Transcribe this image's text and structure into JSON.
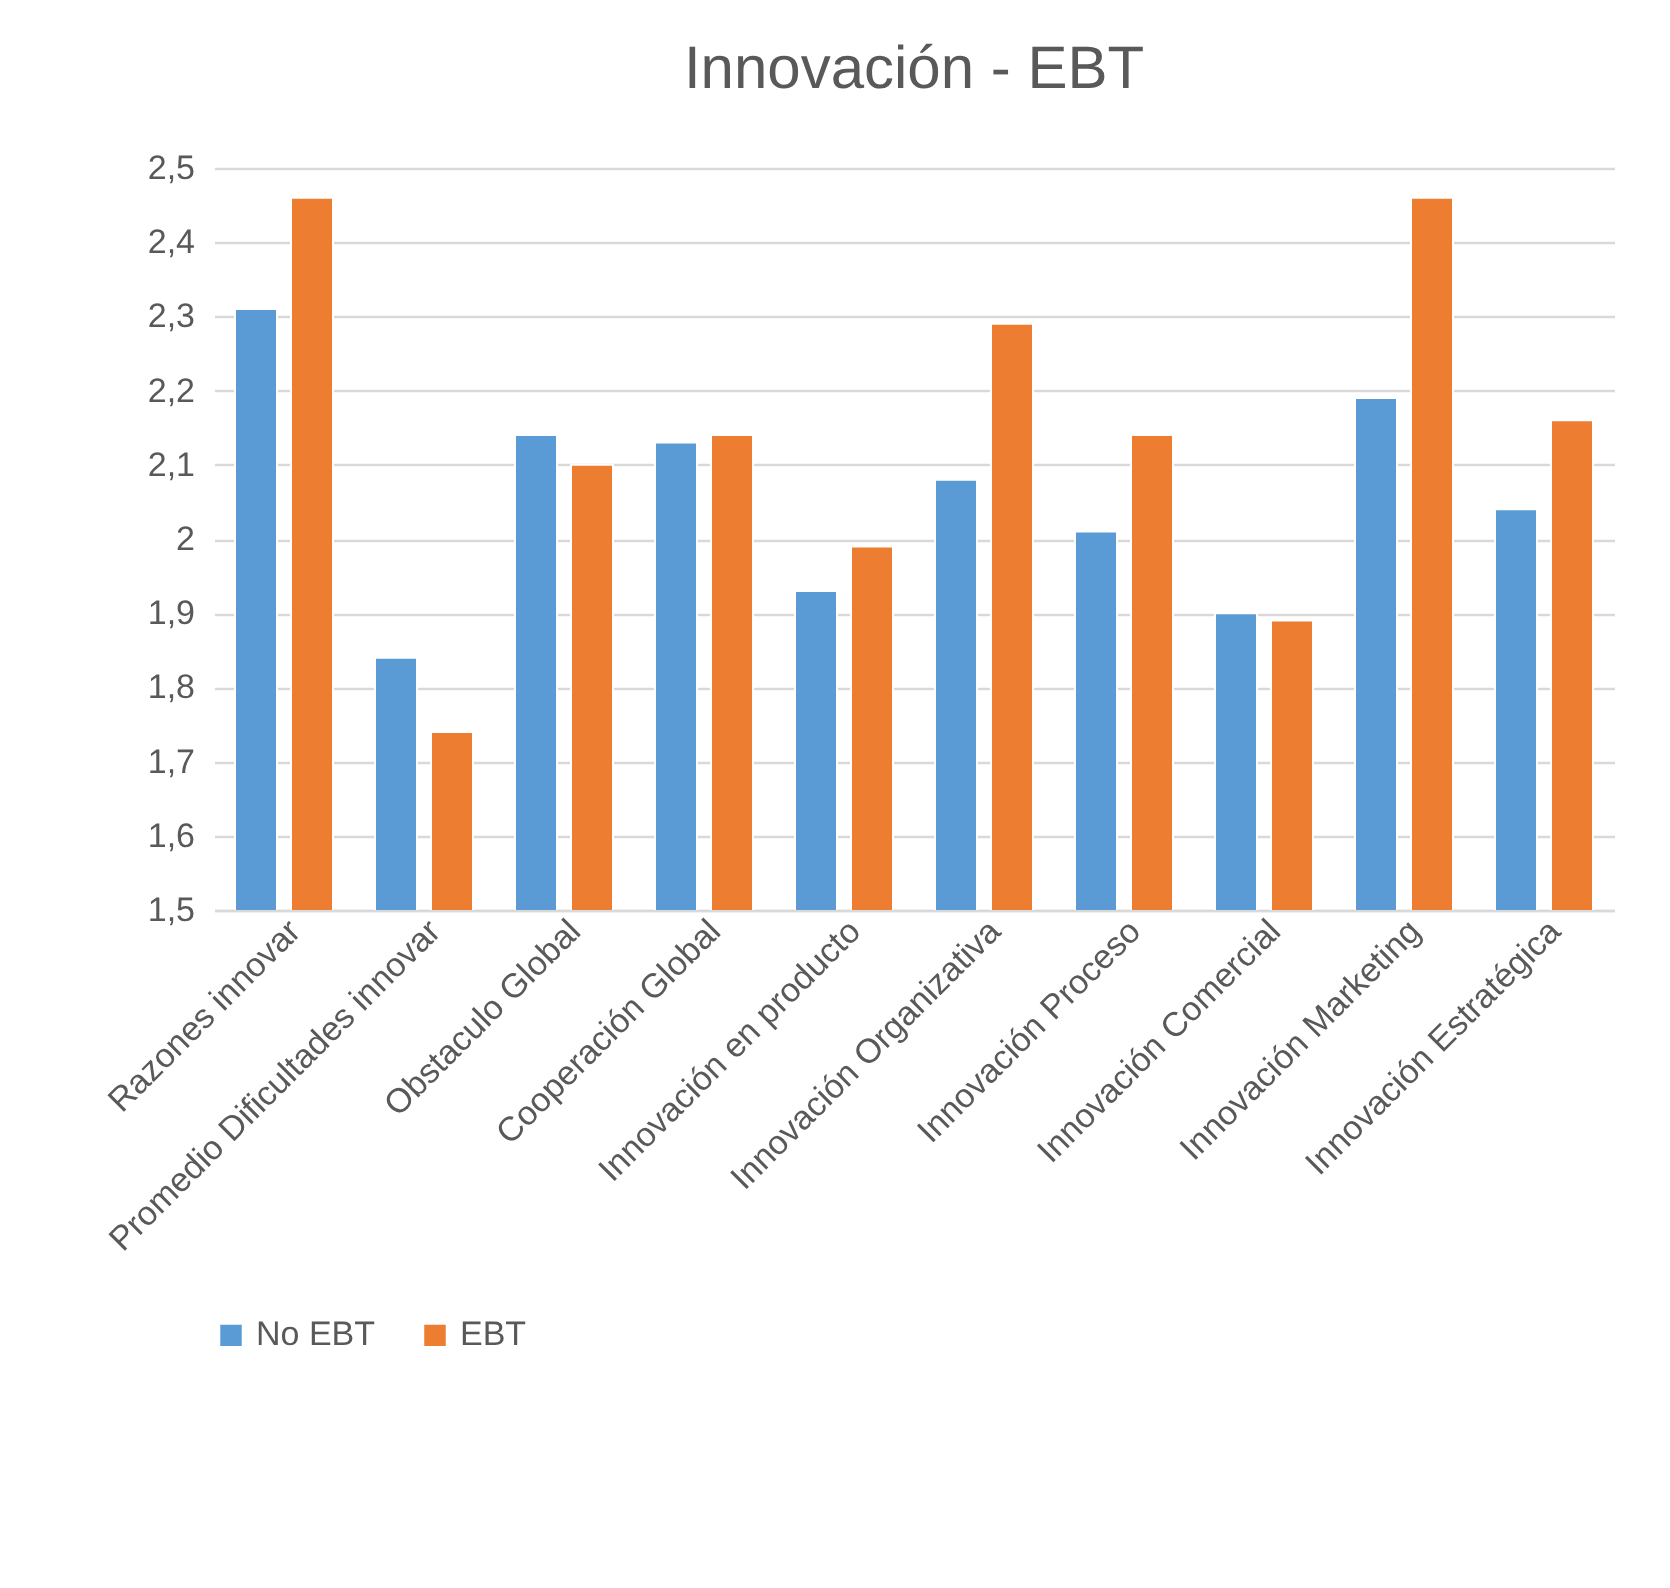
{
  "chart_data": {
    "type": "bar",
    "title": "Innovación - EBT",
    "categories": [
      "Razones innovar",
      "Promedio Dificultades innovar",
      "Obstaculo Global",
      "Cooperación Global",
      "Innovación en producto",
      "Innovación Organizativa",
      "Innovación Proceso",
      "Innovación Comercial",
      "Innovación Marketing",
      "Innovación Estratégica"
    ],
    "series": [
      {
        "name": "No EBT",
        "color": "#5b9bd5",
        "values": [
          2.31,
          1.84,
          2.14,
          2.13,
          1.93,
          2.08,
          2.01,
          1.9,
          2.19,
          2.04
        ]
      },
      {
        "name": "EBT",
        "color": "#ed7d31",
        "values": [
          2.46,
          1.74,
          2.1,
          2.14,
          1.99,
          2.29,
          2.14,
          1.89,
          2.46,
          2.16
        ]
      }
    ],
    "ylim": [
      1.5,
      2.5
    ],
    "yticks": [
      {
        "value": 1.5,
        "label": "1,5"
      },
      {
        "value": 1.6,
        "label": "1,6"
      },
      {
        "value": 1.7,
        "label": "1,7"
      },
      {
        "value": 1.8,
        "label": "1,8"
      },
      {
        "value": 1.9,
        "label": "1,9"
      },
      {
        "value": 2,
        "label": "2"
      },
      {
        "value": 2.1,
        "label": "2,1"
      },
      {
        "value": 2.2,
        "label": "2,2"
      },
      {
        "value": 2.3,
        "label": "2,3"
      },
      {
        "value": 2.4,
        "label": "2,4"
      },
      {
        "value": 2.5,
        "label": "2,5"
      }
    ],
    "grid": "y",
    "legend": "bottom"
  }
}
